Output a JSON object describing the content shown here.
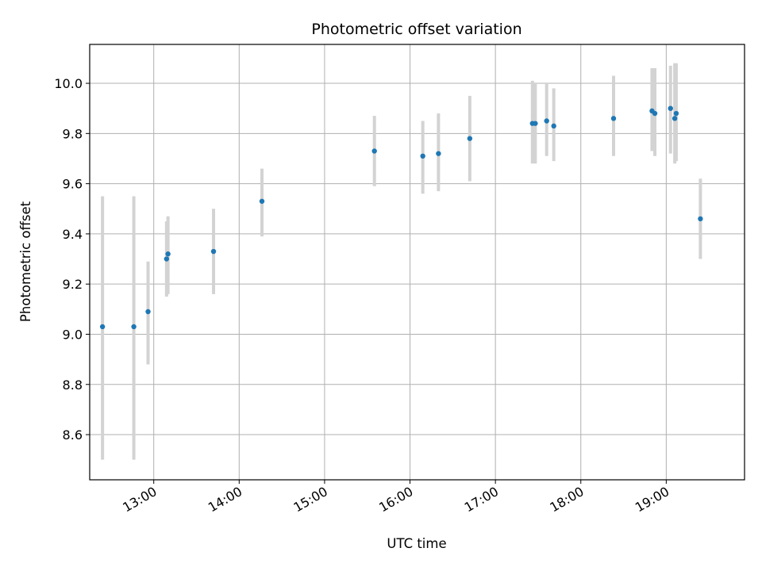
{
  "chart_data": {
    "type": "scatter",
    "title": "Photometric offset variation",
    "xlabel": "UTC time",
    "ylabel": "Photometric offset",
    "x_tick_labels": [
      "13:00",
      "14:00",
      "15:00",
      "16:00",
      "17:00",
      "18:00",
      "19:00"
    ],
    "x_ticks_hours": [
      13,
      14,
      15,
      16,
      17,
      18,
      19
    ],
    "y_tick_labels": [
      "8.6",
      "8.8",
      "9.0",
      "9.2",
      "9.4",
      "9.6",
      "9.8",
      "10.0"
    ],
    "y_ticks": [
      8.6,
      8.8,
      9.0,
      9.2,
      9.4,
      9.6,
      9.8,
      10.0
    ],
    "xlim": [
      "12:15",
      "19:55"
    ],
    "ylim": [
      8.42,
      10.155
    ],
    "grid": true,
    "point_color": "#1f77b4",
    "errorbar_color": "#d3d3d3",
    "points": [
      {
        "time": "12:24",
        "y": 9.03,
        "lo": 8.5,
        "hi": 9.55
      },
      {
        "time": "12:46",
        "y": 9.03,
        "lo": 8.5,
        "hi": 9.55
      },
      {
        "time": "12:56",
        "y": 9.09,
        "lo": 8.88,
        "hi": 9.29
      },
      {
        "time": "13:09",
        "y": 9.3,
        "lo": 9.15,
        "hi": 9.45
      },
      {
        "time": "13:10",
        "y": 9.32,
        "lo": 9.16,
        "hi": 9.47
      },
      {
        "time": "13:42",
        "y": 9.33,
        "lo": 9.16,
        "hi": 9.5
      },
      {
        "time": "14:16",
        "y": 9.53,
        "lo": 9.39,
        "hi": 9.66
      },
      {
        "time": "15:35",
        "y": 9.73,
        "lo": 9.59,
        "hi": 9.87
      },
      {
        "time": "16:09",
        "y": 9.71,
        "lo": 9.56,
        "hi": 9.85
      },
      {
        "time": "16:20",
        "y": 9.72,
        "lo": 9.57,
        "hi": 9.88
      },
      {
        "time": "16:42",
        "y": 9.78,
        "lo": 9.61,
        "hi": 9.95
      },
      {
        "time": "17:26",
        "y": 9.84,
        "lo": 9.68,
        "hi": 10.01
      },
      {
        "time": "17:28",
        "y": 9.84,
        "lo": 9.68,
        "hi": 10.0
      },
      {
        "time": "17:36",
        "y": 9.85,
        "lo": 9.71,
        "hi": 10.0
      },
      {
        "time": "17:41",
        "y": 9.83,
        "lo": 9.69,
        "hi": 9.98
      },
      {
        "time": "18:23",
        "y": 9.86,
        "lo": 9.71,
        "hi": 10.03
      },
      {
        "time": "18:50",
        "y": 9.89,
        "lo": 9.73,
        "hi": 10.06
      },
      {
        "time": "18:52",
        "y": 9.88,
        "lo": 9.71,
        "hi": 10.06
      },
      {
        "time": "19:03",
        "y": 9.9,
        "lo": 9.72,
        "hi": 10.07
      },
      {
        "time": "19:06",
        "y": 9.86,
        "lo": 9.68,
        "hi": 10.08
      },
      {
        "time": "19:07",
        "y": 9.88,
        "lo": 9.69,
        "hi": 10.08
      },
      {
        "time": "19:24",
        "y": 9.46,
        "lo": 9.3,
        "hi": 9.62
      }
    ]
  }
}
